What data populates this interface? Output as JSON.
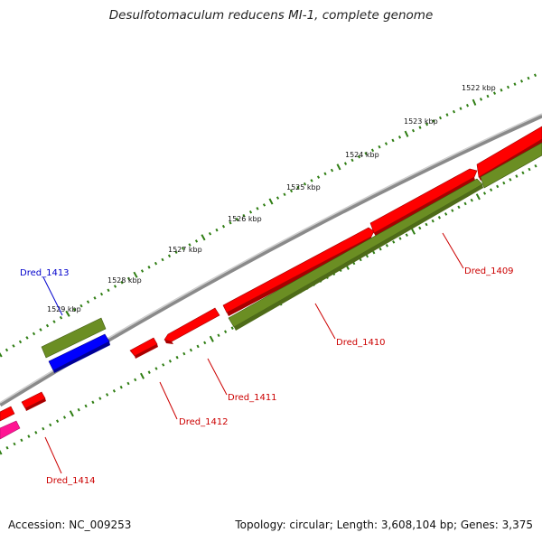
{
  "title": "Desulfotomaculum reducens MI-1, complete genome",
  "footer": {
    "accession": "Accession: NC_009253",
    "topology": "Topology: circular; Length: 3,608,104 bp; Genes: 3,375"
  },
  "ruler": {
    "unit": "kbp",
    "ticks": [
      "1522 kbp",
      "1523 kbp",
      "1524 kbp",
      "1525 kbp",
      "1526 kbp",
      "1527 kbp",
      "1528 kbp",
      "1529 kbp"
    ]
  },
  "genes": [
    {
      "name": "Dred_1409",
      "color": "#cc0000"
    },
    {
      "name": "Dred_1410",
      "color": "#cc0000"
    },
    {
      "name": "Dred_1411",
      "color": "#cc0000"
    },
    {
      "name": "Dred_1412",
      "color": "#cc0000"
    },
    {
      "name": "Dred_1413",
      "color": "#0000cc"
    },
    {
      "name": "Dred_1414",
      "color": "#cc0000"
    }
  ],
  "colors": {
    "backbone": "#8a8a8a",
    "cds_forward": "#ff0000",
    "cds_reverse_olive": "#6b8e23",
    "cds_blue": "#0000ff",
    "cds_pink": "#ff1493",
    "tick_major": "#2e7d12",
    "tick_minor": "#2e7d12"
  }
}
